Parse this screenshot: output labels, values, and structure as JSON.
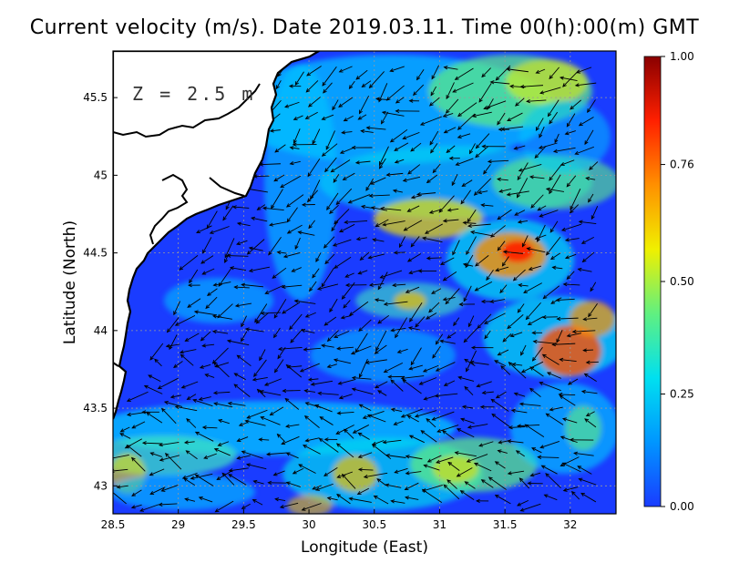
{
  "title": "Current velocity (m/s). Date 2019.03.11. Time 00(h):00(m) GMT",
  "depth_label": "Z = 2.5 m",
  "x_axis": {
    "label": "Longitude (East)",
    "range": [
      28.5,
      32.35
    ],
    "ticks": [
      "28.5",
      "29",
      "29.5",
      "30",
      "30.5",
      "31",
      "31.5",
      "32"
    ],
    "tick_values": [
      28.5,
      29,
      29.5,
      30,
      30.5,
      31,
      31.5,
      32
    ]
  },
  "y_axis": {
    "label": "Latitude (North)",
    "range": [
      42.82,
      45.8
    ],
    "ticks": [
      "43",
      "43.5",
      "44",
      "44.5",
      "45",
      "45.5"
    ],
    "tick_values": [
      43,
      43.5,
      44,
      44.5,
      45,
      45.5
    ]
  },
  "colorbar": {
    "ticks": [
      "0.00",
      "0.25",
      "0.50",
      "0.76",
      "1.00"
    ],
    "tick_values": [
      0,
      0.25,
      0.5,
      0.76,
      1.0
    ],
    "colors": [
      "#1a3cff",
      "#0096ff",
      "#00e0f0",
      "#60f080",
      "#f0f000",
      "#ff9000",
      "#ff2000",
      "#8a0000"
    ]
  },
  "grid": true,
  "colors": {
    "land": "#ffffff",
    "coastline": "#000000",
    "grid": "#9a9a9a",
    "arrows": "#000000"
  }
}
